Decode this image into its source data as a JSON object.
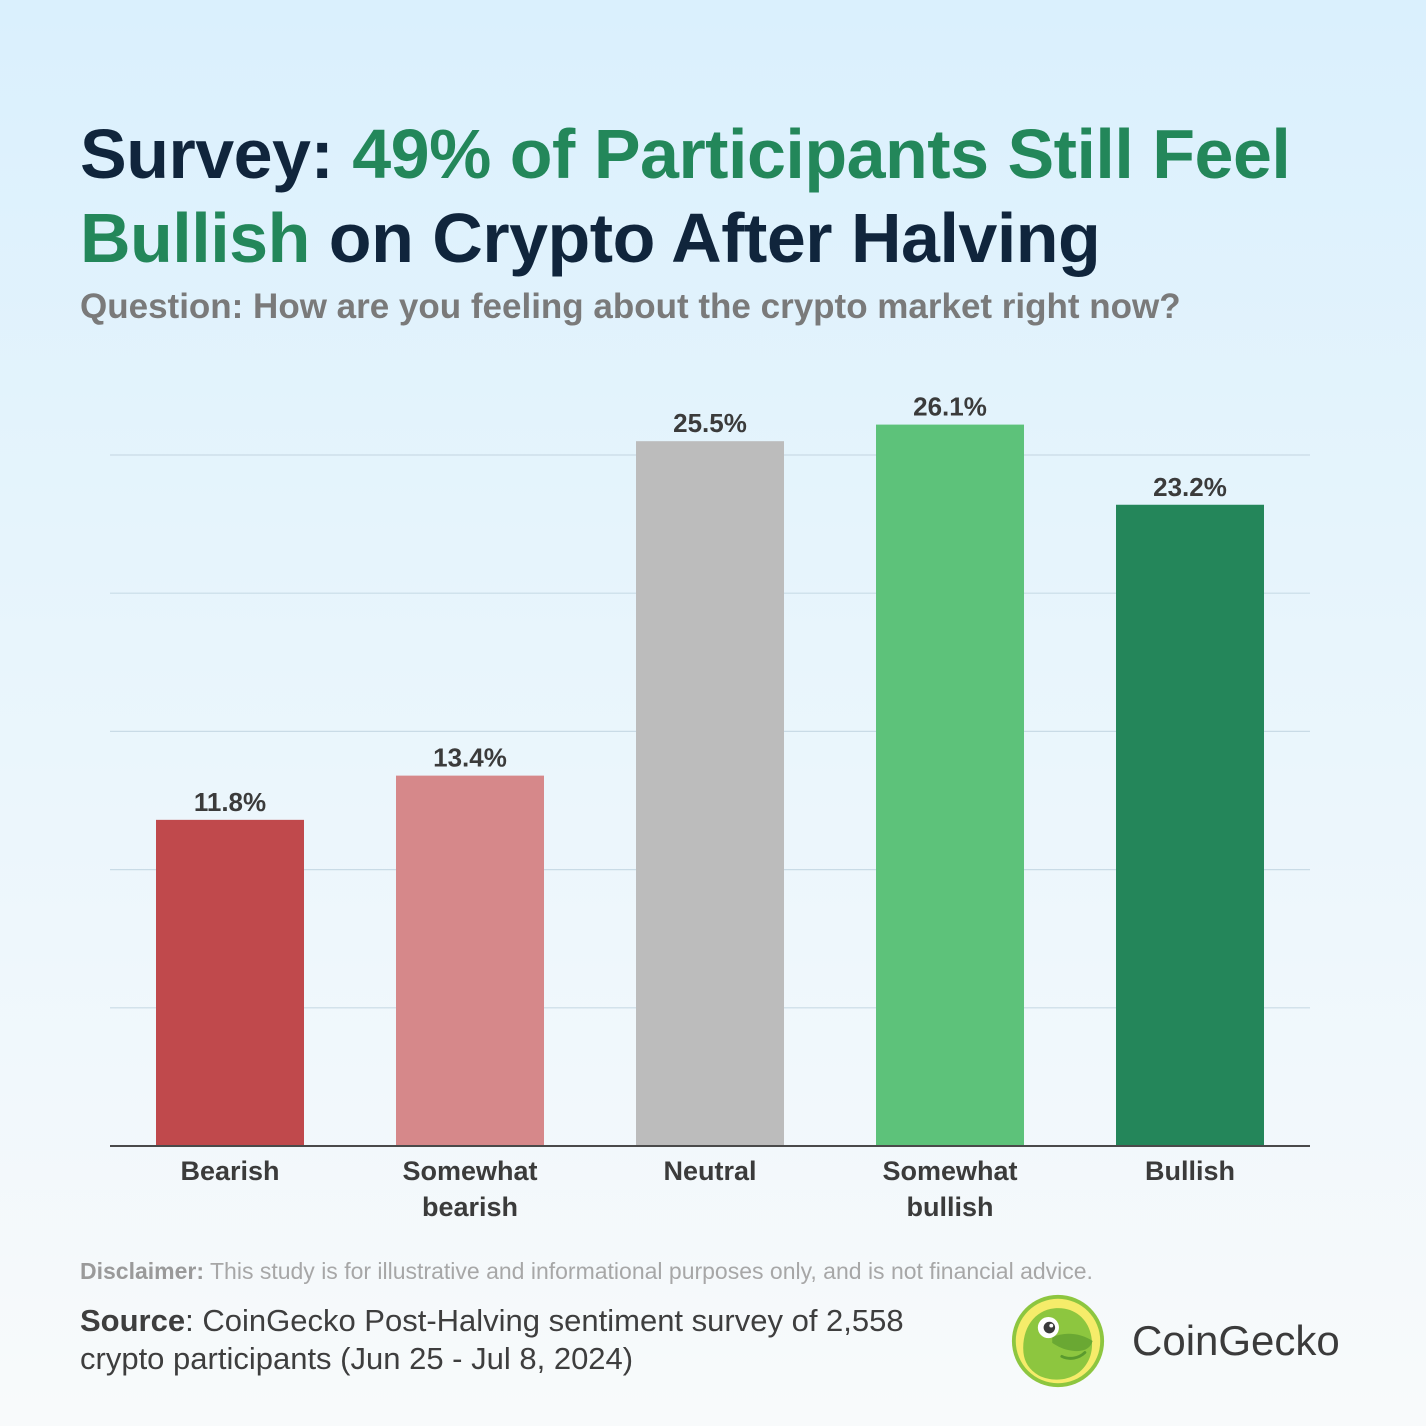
{
  "title": {
    "part1": "Survey: ",
    "part2": "49% of Participants Still Feel Bullish",
    "part3": " on Crypto After Halving"
  },
  "question": "Question: How are you feeling about the crypto market right now?",
  "disclaimer": {
    "label": "Disclaimer:",
    "text": " This study is for illustrative and informational purposes only, and is not financial advice."
  },
  "source": {
    "label": "Source",
    "text": ": CoinGecko Post-Halving sentiment survey of 2,558 crypto participants (Jun 25 - Jul 8, 2024)"
  },
  "brand": {
    "name": "CoinGecko"
  },
  "colors": {
    "title": "#10253c",
    "highlight": "#23875a",
    "question": "#7a7a7a"
  },
  "chart_data": {
    "type": "bar",
    "categories": [
      [
        "Bearish"
      ],
      [
        "Somewhat",
        "bearish"
      ],
      [
        "Neutral"
      ],
      [
        "Somewhat",
        "bullish"
      ],
      [
        "Bullish"
      ]
    ],
    "values": [
      11.8,
      13.4,
      25.5,
      26.1,
      23.2
    ],
    "labels": [
      "11.8%",
      "13.4%",
      "25.5%",
      "26.1%",
      "23.2%"
    ],
    "colors": [
      "#c0494c",
      "#d6888a",
      "#bcbcbc",
      "#5dc27a",
      "#24865a"
    ],
    "ylim": [
      0,
      25
    ],
    "gridlines": [
      5,
      10,
      15,
      20,
      25
    ],
    "grid": true,
    "legend": "none"
  }
}
